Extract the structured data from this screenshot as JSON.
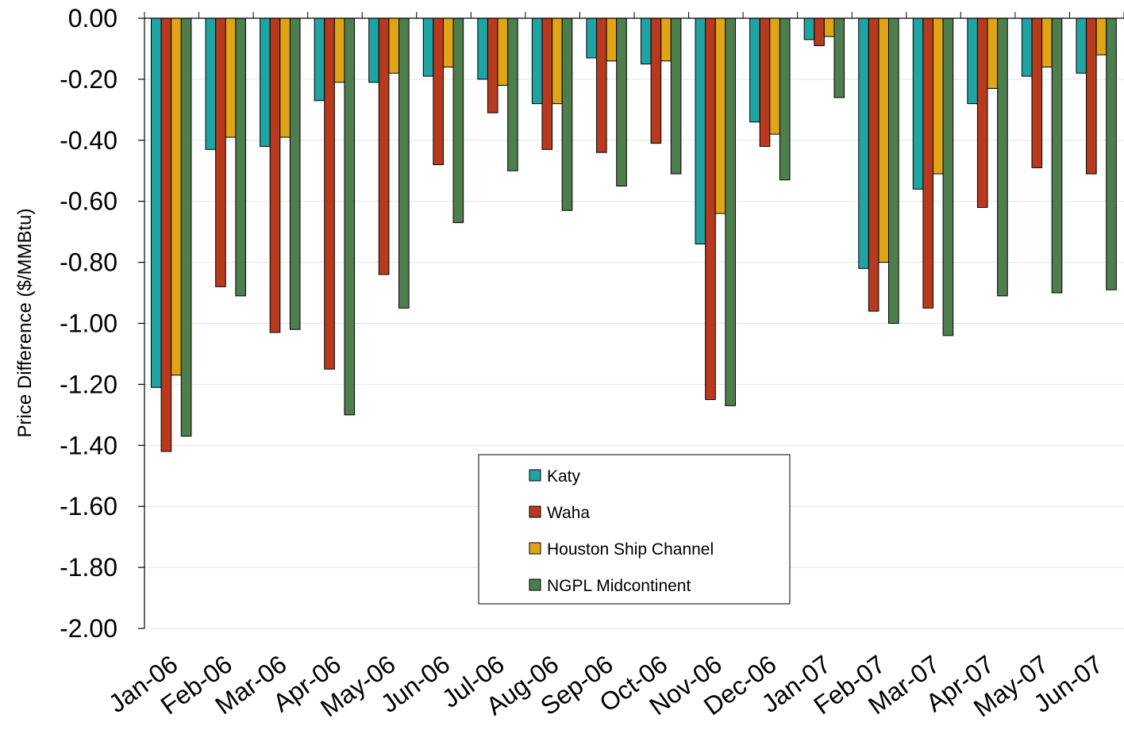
{
  "chart_data": {
    "type": "bar",
    "title": "",
    "xlabel": "",
    "ylabel": "Price Difference ($/MMBtu)",
    "ylim": [
      -2.0,
      0.0
    ],
    "yticks": [
      "0.00",
      "-0.20",
      "-0.40",
      "-0.60",
      "-0.80",
      "-1.00",
      "-1.20",
      "-1.40",
      "-1.60",
      "-1.80",
      "-2.00"
    ],
    "grid": true,
    "legend_position": "bottom-center",
    "categories": [
      "Jan-06",
      "Feb-06",
      "Mar-06",
      "Apr-06",
      "May-06",
      "Jun-06",
      "Jul-06",
      "Aug-06",
      "Sep-06",
      "Oct-06",
      "Nov-06",
      "Dec-06",
      "Jan-07",
      "Feb-07",
      "Mar-07",
      "Apr-07",
      "May-07",
      "Jun-07"
    ],
    "series": [
      {
        "name": "Katy",
        "color": "#1fa3a3",
        "values": [
          -1.21,
          -0.43,
          -0.42,
          -0.27,
          -0.21,
          -0.19,
          -0.2,
          -0.28,
          -0.13,
          -0.15,
          -0.74,
          -0.34,
          -0.07,
          -0.82,
          -0.56,
          -0.28,
          -0.19,
          -0.18
        ]
      },
      {
        "name": "Waha",
        "color": "#b83a1e",
        "values": [
          -1.42,
          -0.88,
          -1.03,
          -1.15,
          -0.84,
          -0.48,
          -0.31,
          -0.43,
          -0.44,
          -0.41,
          -1.25,
          -0.42,
          -0.09,
          -0.96,
          -0.95,
          -0.62,
          -0.49,
          -0.51
        ]
      },
      {
        "name": "Houston Ship Channel",
        "color": "#e0a516",
        "values": [
          -1.17,
          -0.39,
          -0.39,
          -0.21,
          -0.18,
          -0.16,
          -0.22,
          -0.28,
          -0.14,
          -0.14,
          -0.64,
          -0.38,
          -0.06,
          -0.8,
          -0.51,
          -0.23,
          -0.16,
          -0.12
        ]
      },
      {
        "name": "NGPL Midcontinent",
        "color": "#4e7d4e",
        "values": [
          -1.37,
          -0.91,
          -1.02,
          -1.3,
          -0.95,
          -0.67,
          -0.5,
          -0.63,
          -0.55,
          -0.51,
          -1.27,
          -0.53,
          -0.26,
          -1.0,
          -1.04,
          -0.91,
          -0.9,
          -0.89
        ]
      }
    ]
  }
}
